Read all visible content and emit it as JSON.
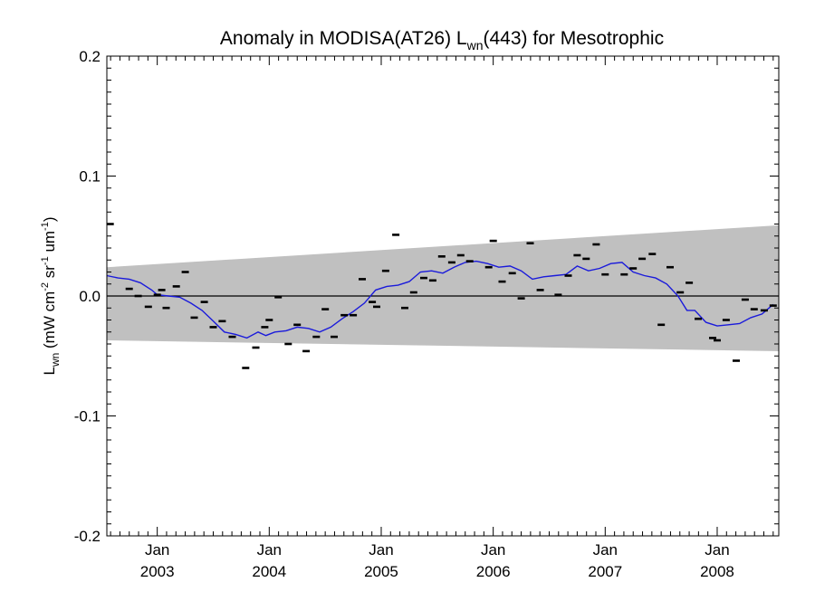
{
  "chart_data": {
    "type": "scatter",
    "title": "Anomaly in MODISA(AT26) L",
    "title_sub": "wn",
    "title_tail": "(443) for Mesotrophic",
    "ylabel_main": "L",
    "ylabel_sub": "wn",
    "ylabel_units": [
      {
        "t": " (mW cm",
        "sup": false
      },
      {
        "t": "-2",
        "sup": true
      },
      {
        "t": " sr",
        "sup": false
      },
      {
        "t": "-1",
        "sup": true
      },
      {
        "t": " um",
        "sup": false
      },
      {
        "t": "-1",
        "sup": true
      },
      {
        "t": ")",
        "sup": false
      }
    ],
    "xlim": [
      2002.55,
      2008.55
    ],
    "ylim": [
      -0.2,
      0.2
    ],
    "yticks": [
      {
        "v": -0.2,
        "label": "-0.2"
      },
      {
        "v": -0.1,
        "label": "-0.1"
      },
      {
        "v": 0.0,
        "label": "0.0"
      },
      {
        "v": 0.1,
        "label": "0.1"
      },
      {
        "v": 0.2,
        "label": "0.2"
      }
    ],
    "xticks": [
      {
        "v": 2003.0,
        "month": "Jan",
        "year": "2003"
      },
      {
        "v": 2004.0,
        "month": "Jan",
        "year": "2004"
      },
      {
        "v": 2005.0,
        "month": "Jan",
        "year": "2005"
      },
      {
        "v": 2006.0,
        "month": "Jan",
        "year": "2006"
      },
      {
        "v": 2007.0,
        "month": "Jan",
        "year": "2007"
      },
      {
        "v": 2008.0,
        "month": "Jan",
        "year": "2008"
      }
    ],
    "band": {
      "lower": [
        -0.037,
        -0.046
      ],
      "upper": [
        0.024,
        0.059
      ],
      "color": "#c0c0c0"
    },
    "zero_line": 0.0,
    "points": [
      [
        2002.58,
        0.06
      ],
      [
        2002.75,
        0.006
      ],
      [
        2002.83,
        0.0
      ],
      [
        2002.92,
        -0.009
      ],
      [
        2003.0,
        0.001
      ],
      [
        2003.04,
        0.005
      ],
      [
        2003.08,
        -0.01
      ],
      [
        2003.17,
        0.008
      ],
      [
        2003.25,
        0.02
      ],
      [
        2003.33,
        -0.018
      ],
      [
        2003.42,
        -0.005
      ],
      [
        2003.5,
        -0.026
      ],
      [
        2003.58,
        -0.021
      ],
      [
        2003.67,
        -0.034
      ],
      [
        2003.79,
        -0.06
      ],
      [
        2003.88,
        -0.043
      ],
      [
        2003.96,
        -0.026
      ],
      [
        2004.0,
        -0.02
      ],
      [
        2004.08,
        -0.001
      ],
      [
        2004.17,
        -0.04
      ],
      [
        2004.25,
        -0.024
      ],
      [
        2004.33,
        -0.046
      ],
      [
        2004.42,
        -0.034
      ],
      [
        2004.5,
        -0.011
      ],
      [
        2004.58,
        -0.034
      ],
      [
        2004.67,
        -0.016
      ],
      [
        2004.75,
        -0.016
      ],
      [
        2004.83,
        0.014
      ],
      [
        2004.92,
        -0.005
      ],
      [
        2004.96,
        -0.009
      ],
      [
        2005.04,
        0.021
      ],
      [
        2005.13,
        0.051
      ],
      [
        2005.21,
        -0.01
      ],
      [
        2005.29,
        0.003
      ],
      [
        2005.38,
        0.015
      ],
      [
        2005.46,
        0.013
      ],
      [
        2005.54,
        0.033
      ],
      [
        2005.63,
        0.028
      ],
      [
        2005.71,
        0.034
      ],
      [
        2005.79,
        0.029
      ],
      [
        2005.96,
        0.024
      ],
      [
        2006.0,
        0.046
      ],
      [
        2006.08,
        0.012
      ],
      [
        2006.17,
        0.019
      ],
      [
        2006.25,
        -0.002
      ],
      [
        2006.33,
        0.044
      ],
      [
        2006.42,
        0.005
      ],
      [
        2006.58,
        0.001
      ],
      [
        2006.67,
        0.017
      ],
      [
        2006.75,
        0.034
      ],
      [
        2006.83,
        0.031
      ],
      [
        2006.92,
        0.043
      ],
      [
        2007.0,
        0.018
      ],
      [
        2007.17,
        0.018
      ],
      [
        2007.25,
        0.023
      ],
      [
        2007.33,
        0.031
      ],
      [
        2007.42,
        0.035
      ],
      [
        2007.5,
        -0.024
      ],
      [
        2007.58,
        0.024
      ],
      [
        2007.67,
        0.003
      ],
      [
        2007.75,
        0.011
      ],
      [
        2007.83,
        -0.019
      ],
      [
        2007.96,
        -0.035
      ],
      [
        2008.0,
        -0.037
      ],
      [
        2008.08,
        -0.02
      ],
      [
        2008.17,
        -0.054
      ],
      [
        2008.25,
        -0.003
      ],
      [
        2008.33,
        -0.011
      ],
      [
        2008.42,
        -0.012
      ],
      [
        2008.5,
        -0.008
      ]
    ],
    "running_mean": {
      "color": "#1a1adb",
      "points": [
        [
          2002.55,
          0.017
        ],
        [
          2002.65,
          0.015
        ],
        [
          2002.75,
          0.014
        ],
        [
          2002.85,
          0.011
        ],
        [
          2002.95,
          0.005
        ],
        [
          2003.0,
          0.001
        ],
        [
          2003.1,
          0.0
        ],
        [
          2003.2,
          -0.001
        ],
        [
          2003.3,
          -0.006
        ],
        [
          2003.4,
          -0.012
        ],
        [
          2003.5,
          -0.021
        ],
        [
          2003.6,
          -0.03
        ],
        [
          2003.7,
          -0.032
        ],
        [
          2003.8,
          -0.035
        ],
        [
          2003.9,
          -0.03
        ],
        [
          2003.97,
          -0.033
        ],
        [
          2004.05,
          -0.03
        ],
        [
          2004.15,
          -0.029
        ],
        [
          2004.25,
          -0.026
        ],
        [
          2004.35,
          -0.027
        ],
        [
          2004.45,
          -0.03
        ],
        [
          2004.55,
          -0.026
        ],
        [
          2004.65,
          -0.019
        ],
        [
          2004.75,
          -0.013
        ],
        [
          2004.85,
          -0.006
        ],
        [
          2004.95,
          0.005
        ],
        [
          2005.05,
          0.008
        ],
        [
          2005.15,
          0.009
        ],
        [
          2005.25,
          0.012
        ],
        [
          2005.35,
          0.02
        ],
        [
          2005.45,
          0.021
        ],
        [
          2005.55,
          0.019
        ],
        [
          2005.65,
          0.024
        ],
        [
          2005.75,
          0.028
        ],
        [
          2005.85,
          0.029
        ],
        [
          2005.95,
          0.027
        ],
        [
          2006.05,
          0.024
        ],
        [
          2006.15,
          0.025
        ],
        [
          2006.25,
          0.021
        ],
        [
          2006.35,
          0.014
        ],
        [
          2006.45,
          0.016
        ],
        [
          2006.55,
          0.017
        ],
        [
          2006.65,
          0.018
        ],
        [
          2006.75,
          0.025
        ],
        [
          2006.85,
          0.021
        ],
        [
          2006.95,
          0.023
        ],
        [
          2007.05,
          0.027
        ],
        [
          2007.15,
          0.028
        ],
        [
          2007.25,
          0.02
        ],
        [
          2007.35,
          0.017
        ],
        [
          2007.45,
          0.015
        ],
        [
          2007.55,
          0.01
        ],
        [
          2007.65,
          0.0
        ],
        [
          2007.73,
          -0.012
        ],
        [
          2007.8,
          -0.012
        ],
        [
          2007.9,
          -0.022
        ],
        [
          2008.0,
          -0.025
        ],
        [
          2008.1,
          -0.024
        ],
        [
          2008.2,
          -0.023
        ],
        [
          2008.3,
          -0.018
        ],
        [
          2008.4,
          -0.015
        ],
        [
          2008.5,
          -0.007
        ]
      ]
    }
  }
}
